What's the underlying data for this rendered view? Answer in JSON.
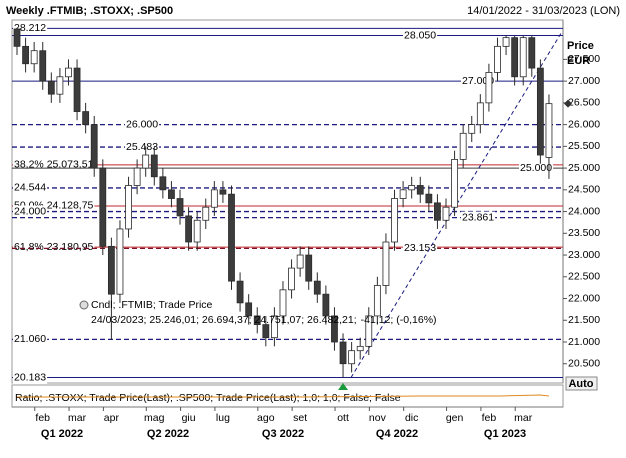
{
  "chart_data": {
    "type": "candlestick",
    "title": "Weekly .FTMIB; .STOXX; .SP500",
    "date_range": "14/01/2022 - 31/03/2023 (LON)",
    "y_label": "Price",
    "y_unit": "EUR",
    "up_color": "#ffffff",
    "down_color": "#3c3c3c",
    "outline_color": "#2b2b2b",
    "ylim": [
      20080,
      28360
    ],
    "yticks": [
      {
        "value": 20500,
        "label": "20.500"
      },
      {
        "value": 21000,
        "label": "21.000"
      },
      {
        "value": 21500,
        "label": "21.500"
      },
      {
        "value": 22000,
        "label": "22.000"
      },
      {
        "value": 22500,
        "label": "22.500"
      },
      {
        "value": 23000,
        "label": "23.000"
      },
      {
        "value": 23500,
        "label": "23.500"
      },
      {
        "value": 24000,
        "label": "24.000"
      },
      {
        "value": 24500,
        "label": "24.500"
      },
      {
        "value": 25000,
        "label": "25.000"
      },
      {
        "value": 25500,
        "label": "25.500"
      },
      {
        "value": 26000,
        "label": "26.000"
      },
      {
        "value": 26500,
        "label": "26.500"
      },
      {
        "value": 27000,
        "label": "27.000"
      },
      {
        "value": 27500,
        "label": "27.500"
      }
    ],
    "categories": [
      null,
      null,
      null,
      "feb",
      null,
      null,
      null,
      "mar",
      null,
      null,
      null,
      "apr",
      null,
      null,
      null,
      null,
      "mag",
      null,
      null,
      null,
      "giu",
      null,
      null,
      null,
      "lug",
      null,
      null,
      null,
      null,
      "ago",
      null,
      null,
      null,
      "set",
      null,
      null,
      null,
      null,
      "ott",
      null,
      null,
      null,
      "nov",
      null,
      null,
      null,
      "dic",
      null,
      null,
      null,
      null,
      "gen",
      null,
      null,
      null,
      "feb",
      null,
      null,
      null,
      "mar",
      null,
      null,
      null
    ],
    "quarters": [
      "Q1 2022",
      "Q2 2022",
      "Q3 2022",
      "Q4 2022",
      "Q1 2023"
    ],
    "candles": [
      [
        28200,
        28212,
        27600,
        27800
      ],
      [
        27800,
        28000,
        27200,
        27400
      ],
      [
        27400,
        27900,
        27200,
        27700
      ],
      [
        27700,
        27900,
        26800,
        27000
      ],
      [
        27000,
        27200,
        26500,
        26700
      ],
      [
        26700,
        27300,
        26500,
        27100
      ],
      [
        27100,
        27500,
        26900,
        27300
      ],
      [
        27300,
        27500,
        26100,
        26300
      ],
      [
        26300,
        26500,
        25800,
        26000
      ],
      [
        26000,
        26200,
        24800,
        25000
      ],
      [
        25000,
        25200,
        23000,
        23200
      ],
      [
        23200,
        23400,
        21060,
        22100
      ],
      [
        22100,
        23800,
        21900,
        23600
      ],
      [
        23600,
        24800,
        23400,
        24600
      ],
      [
        24600,
        25200,
        24400,
        25000
      ],
      [
        25000,
        25500,
        24800,
        25300
      ],
      [
        25300,
        25500,
        24600,
        24800
      ],
      [
        24800,
        25000,
        24300,
        24500
      ],
      [
        24500,
        24700,
        24100,
        24300
      ],
      [
        24300,
        24500,
        23700,
        23900
      ],
      [
        23900,
        24100,
        23100,
        23300
      ],
      [
        23300,
        24000,
        23100,
        23800
      ],
      [
        23800,
        24300,
        23600,
        24100
      ],
      [
        24100,
        24700,
        23900,
        24500
      ],
      [
        24500,
        24700,
        24200,
        24400
      ],
      [
        24400,
        24600,
        22200,
        22400
      ],
      [
        22400,
        22600,
        21700,
        21900
      ],
      [
        21900,
        22100,
        21400,
        21600
      ],
      [
        21600,
        21800,
        21200,
        21400
      ],
      [
        21400,
        21600,
        20900,
        21100
      ],
      [
        21100,
        21800,
        20900,
        21600
      ],
      [
        21600,
        22400,
        21400,
        22200
      ],
      [
        22200,
        22900,
        22000,
        22700
      ],
      [
        22700,
        23200,
        22500,
        23000
      ],
      [
        23000,
        23200,
        22200,
        22400
      ],
      [
        22400,
        22600,
        21900,
        22100
      ],
      [
        22100,
        22300,
        21400,
        21600
      ],
      [
        21600,
        21800,
        20800,
        21000
      ],
      [
        21000,
        21200,
        20183,
        20500
      ],
      [
        20500,
        21000,
        20300,
        20800
      ],
      [
        20800,
        21100,
        20600,
        20900
      ],
      [
        20900,
        21800,
        20700,
        21600
      ],
      [
        21600,
        22500,
        21400,
        22300
      ],
      [
        22300,
        23500,
        22100,
        23300
      ],
      [
        23300,
        24500,
        23100,
        24300
      ],
      [
        24300,
        24700,
        24100,
        24500
      ],
      [
        24500,
        24800,
        24300,
        24600
      ],
      [
        24600,
        24800,
        24200,
        24400
      ],
      [
        24400,
        24600,
        24000,
        24200
      ],
      [
        24200,
        24400,
        23600,
        23800
      ],
      [
        23800,
        24300,
        23600,
        24100
      ],
      [
        24100,
        25400,
        23900,
        25200
      ],
      [
        25200,
        26000,
        25000,
        25800
      ],
      [
        25800,
        26200,
        25600,
        26000
      ],
      [
        26000,
        26700,
        25800,
        26500
      ],
      [
        26500,
        27400,
        26300,
        27200
      ],
      [
        27200,
        28000,
        27000,
        27800
      ],
      [
        27800,
        28050,
        27600,
        28000
      ],
      [
        28000,
        28050,
        26900,
        27100
      ],
      [
        27100,
        28050,
        26900,
        28000
      ],
      [
        28000,
        28050,
        27100,
        27300
      ],
      [
        27300,
        27500,
        25100,
        25300
      ],
      [
        25246.01,
        26694.37,
        24751.07,
        26482.21
      ]
    ],
    "levels": [
      {
        "value": 28212,
        "label": "28.212",
        "color": "#1a1a80",
        "style": "solid",
        "label_at": "left"
      },
      {
        "value": 28050,
        "label": "28.050",
        "color": "#1a1a80",
        "style": "solid",
        "label_at": "center"
      },
      {
        "value": 27000,
        "label": "27.000",
        "color": "#1a1a80",
        "style": "solid",
        "label_at": "center-right"
      },
      {
        "value": 26000,
        "label": "26.000",
        "color": "#1a1a80",
        "style": "dashed",
        "label_at": "center-left"
      },
      {
        "value": 25483,
        "label": "25.483",
        "color": "#1a1a80",
        "style": "dashed",
        "label_at": "center-left"
      },
      {
        "value": 25073.51,
        "label": "38,2% 25.073,51",
        "color": "#c0262c",
        "style": "solid",
        "label_at": "left"
      },
      {
        "value": 25000,
        "label": "25.000",
        "color": "#3a3a3a",
        "style": "solid",
        "label_at": "right"
      },
      {
        "value": 24544,
        "label": "24.544",
        "color": "#1a1a80",
        "style": "dashed",
        "label_at": "left"
      },
      {
        "value": 24128.75,
        "label": "50,0% 24.128,75",
        "color": "#c0262c",
        "style": "solid",
        "label_at": "left"
      },
      {
        "value": 24000,
        "label": "24.000",
        "color": "#1a1a80",
        "style": "dashed",
        "label_at": "left"
      },
      {
        "value": 23861,
        "label": "23.861",
        "color": "#1a1a80",
        "style": "dashed",
        "label_at": "center-right"
      },
      {
        "value": 23180.95,
        "label": "61,8% 23.180,95",
        "color": "#c0262c",
        "style": "solid",
        "label_at": "left"
      },
      {
        "value": 23153,
        "label": "23.153",
        "color": "#7a1020",
        "style": "dashed",
        "label_at": "center"
      },
      {
        "value": 21060,
        "label": "21.060",
        "color": "#1a1a80",
        "style": "dashed",
        "label_at": "left"
      },
      {
        "value": 20183,
        "label": "20.183",
        "color": "#1a1a80",
        "style": "solid",
        "label_at": "left"
      }
    ],
    "trendline": {
      "start": 20183,
      "end": 28100,
      "color": "#1a1a80"
    },
    "tooltip": {
      "header": "Cndl; .FTMIB; Trade Price",
      "values": "24/03/2023; 25.246,01; 26.694,37; 24.751,07; 26.482,21;",
      "change": "-41,12; (-0,16%)"
    },
    "indicator": {
      "label": "Ratio; .STOXX; Trade Price(Last); .SP500; Trade Price(Last);  1,0; 1,0; False; False",
      "color": "#e08a1e"
    },
    "scale_button": "Auto"
  }
}
